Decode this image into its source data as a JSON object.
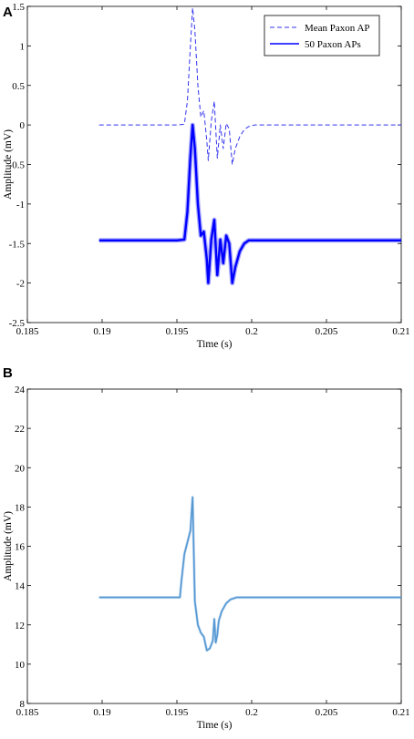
{
  "chart_data": [
    {
      "panel_label": "A",
      "type": "line",
      "xlabel": "Time (s)",
      "ylabel": "Amplitude (mV)",
      "xlim": [
        0.185,
        0.21
      ],
      "ylim": [
        -2.5,
        1.5
      ],
      "xticks": [
        "0.185",
        "0.19",
        "0.195",
        "0.2",
        "0.205",
        "0.21"
      ],
      "yticks": [
        "1.5",
        "1",
        "0.5",
        "0",
        "-0.5",
        "-1",
        "-1.5",
        "-2",
        "-2.5"
      ],
      "legend_position": "top-right",
      "series": [
        {
          "name": "Mean Paxon AP",
          "style": "dashed",
          "color": "#3333ee",
          "x": [
            0.1898,
            0.195,
            0.1955,
            0.1957,
            0.1959,
            0.19605,
            0.1962,
            0.1964,
            0.1966,
            0.1968,
            0.197,
            0.1971,
            0.1973,
            0.1975,
            0.1977,
            0.1979,
            0.1981,
            0.1983,
            0.1985,
            0.1987,
            0.1989,
            0.1992,
            0.1995,
            0.1998,
            0.2002,
            0.205,
            0.21
          ],
          "y": [
            0.0,
            0.0,
            0.01,
            0.3,
            1.0,
            1.48,
            1.2,
            0.5,
            0.1,
            0.18,
            -0.2,
            -0.45,
            0.05,
            0.3,
            -0.42,
            0.0,
            -0.3,
            0.02,
            -0.05,
            -0.5,
            -0.3,
            -0.15,
            -0.06,
            -0.02,
            0.0,
            0.0,
            0.0
          ]
        },
        {
          "name": "50 Paxon APs",
          "style": "solid",
          "color": "#0000ff",
          "x": [
            0.1898,
            0.195,
            0.1955,
            0.1957,
            0.1959,
            0.19605,
            0.1962,
            0.1964,
            0.1966,
            0.1968,
            0.197,
            0.1971,
            0.1973,
            0.1975,
            0.1977,
            0.1979,
            0.1981,
            0.1983,
            0.1985,
            0.1987,
            0.1989,
            0.1992,
            0.1995,
            0.1998,
            0.2002,
            0.205,
            0.21
          ],
          "y": [
            -1.46,
            -1.46,
            -1.45,
            -1.1,
            -0.4,
            0.0,
            -0.3,
            -1.0,
            -1.4,
            -1.35,
            -1.7,
            -2.0,
            -1.45,
            -1.2,
            -1.9,
            -1.45,
            -1.75,
            -1.4,
            -1.5,
            -2.0,
            -1.8,
            -1.6,
            -1.5,
            -1.46,
            -1.46,
            -1.46,
            -1.46
          ]
        }
      ]
    },
    {
      "panel_label": "B",
      "type": "line",
      "xlabel": "Time (s)",
      "ylabel": "Amplitude (mV)",
      "xlim": [
        0.185,
        0.21
      ],
      "ylim": [
        8,
        24
      ],
      "xticks": [
        "0.185",
        "0.19",
        "0.195",
        "0.2",
        "0.205",
        "0.21"
      ],
      "yticks": [
        "24",
        "22",
        "20",
        "18",
        "16",
        "14",
        "12",
        "10",
        "8"
      ],
      "series": [
        {
          "style": "solid",
          "color": "#5599d4",
          "x": [
            0.1898,
            0.192,
            0.194,
            0.1952,
            0.1953,
            0.1955,
            0.1957,
            0.1959,
            0.19605,
            0.1962,
            0.1964,
            0.1966,
            0.1968,
            0.197,
            0.1972,
            0.1974,
            0.1975,
            0.1976,
            0.1977,
            0.1978,
            0.198,
            0.1983,
            0.1986,
            0.199,
            0.1995,
            0.2,
            0.205,
            0.21
          ],
          "y": [
            13.4,
            13.4,
            13.4,
            13.4,
            14.2,
            15.6,
            16.2,
            16.8,
            18.5,
            13.2,
            12.0,
            11.6,
            11.4,
            10.7,
            10.8,
            11.2,
            12.3,
            11.1,
            11.5,
            12.2,
            12.7,
            13.1,
            13.3,
            13.4,
            13.4,
            13.4,
            13.4,
            13.4
          ]
        }
      ]
    }
  ]
}
